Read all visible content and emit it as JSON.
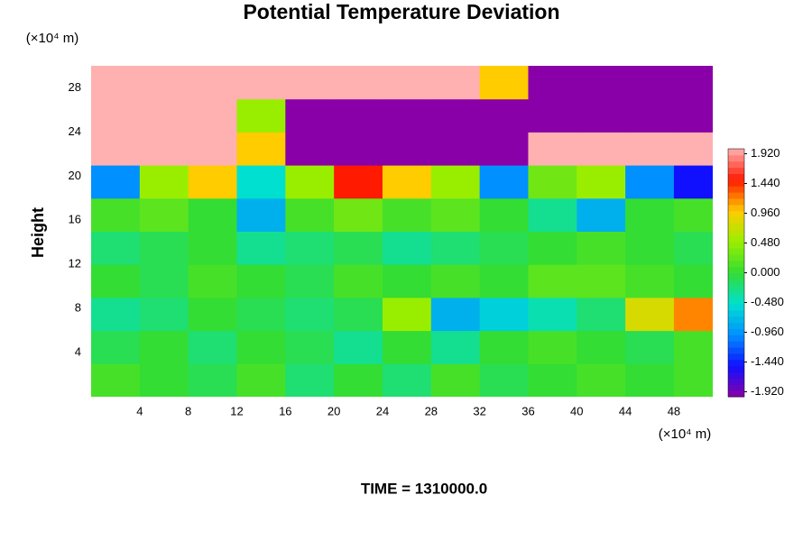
{
  "chart_data": {
    "type": "contour",
    "title": "Potential Temperature Deviation",
    "y_label": "Height",
    "y_unit": "(×10⁴ m)",
    "x_unit": "(×10⁴ m)",
    "footer": "TIME = 1310000.0",
    "x": [
      2,
      6,
      10,
      14,
      18,
      22,
      26,
      30,
      34,
      38,
      42,
      46,
      50
    ],
    "y": [
      1.5,
      4.5,
      7.5,
      10.5,
      13.5,
      16.5,
      19.5,
      22.5,
      25.5,
      28.5
    ],
    "z": [
      [
        0.1,
        0,
        -0.1,
        0.1,
        -0.2,
        0,
        -0.2,
        0.1,
        -0.1,
        0,
        0.1,
        0,
        0.1
      ],
      [
        -0.1,
        0,
        -0.2,
        0,
        -0.1,
        -0.3,
        0,
        -0.3,
        0,
        0.1,
        0,
        -0.1,
        0.1
      ],
      [
        -0.3,
        -0.2,
        0,
        -0.1,
        -0.2,
        -0.1,
        0.5,
        -0.8,
        -0.6,
        -0.4,
        -0.2,
        0.8,
        1.2
      ],
      [
        0,
        -0.1,
        0.1,
        0,
        -0.1,
        0.1,
        0,
        0.1,
        0,
        0.2,
        0.2,
        0.1,
        0
      ],
      [
        -0.2,
        -0.1,
        0,
        -0.3,
        -0.2,
        -0.1,
        -0.3,
        -0.2,
        -0.1,
        0,
        0.1,
        0,
        -0.1
      ],
      [
        0.1,
        0.2,
        0,
        -0.8,
        0.1,
        0.3,
        0.1,
        0.2,
        0,
        -0.3,
        -0.8,
        0,
        0.1
      ],
      [
        -1,
        0.5,
        1,
        -0.5,
        0.5,
        1.5,
        1,
        0.5,
        -1,
        0.3,
        0.5,
        -1,
        -1.5
      ],
      [
        2,
        2,
        2,
        1,
        -2,
        -2,
        -2,
        -2,
        -2,
        2,
        2,
        2,
        2
      ],
      [
        2,
        2,
        2,
        0.5,
        -2,
        -2,
        -2,
        -2,
        -2,
        -2,
        -2,
        -2,
        -2
      ],
      [
        2,
        2,
        2,
        2,
        2,
        2,
        2,
        2,
        1,
        -2,
        -2,
        -2,
        -2
      ]
    ],
    "xlim": [
      0,
      51.2
    ],
    "ylim": [
      0,
      30
    ],
    "xticks": [
      4,
      8,
      12,
      16,
      20,
      24,
      28,
      32,
      36,
      40,
      44,
      48
    ],
    "yticks": [
      4,
      8,
      12,
      16,
      20,
      24,
      28
    ],
    "zlim": [
      -2,
      2
    ],
    "zticks": [
      {
        "value": 1.92,
        "label": "1.920"
      },
      {
        "value": 1.44,
        "label": "1.440"
      },
      {
        "value": 0.96,
        "label": "0.960"
      },
      {
        "value": 0.48,
        "label": "0.480"
      },
      {
        "value": 0,
        "label": "0.000"
      },
      {
        "value": -0.48,
        "label": "-0.480"
      },
      {
        "value": -0.96,
        "label": "-0.960"
      },
      {
        "value": -1.44,
        "label": "-1.440"
      },
      {
        "value": -1.92,
        "label": "-1.920"
      }
    ],
    "colormap": [
      "#8a00a8",
      "#1010ff",
      "#0090ff",
      "#00e0d0",
      "#33dd33",
      "#99ee00",
      "#ffcc00",
      "#ff1a00",
      "#ffb0b0"
    ]
  }
}
